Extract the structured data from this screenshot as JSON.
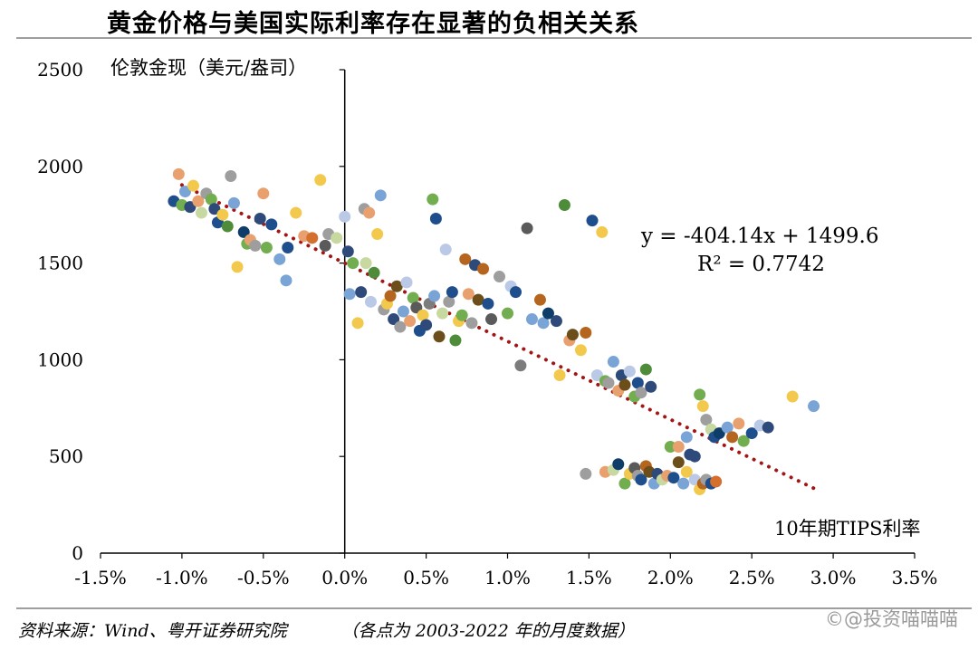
{
  "header": {
    "title": "黄金价格与美国实际利率存在显著的负相关关系"
  },
  "footer": {
    "source": "资料来源：Wind、粤开证券研究院",
    "note": "（各点为 2003-2022 年的月度数据）"
  },
  "watermark": {
    "text": "©@投资喵喵喵"
  },
  "chart_data": {
    "type": "scatter",
    "ylabel": "伦敦金现（美元/盎司）",
    "xlabel": "10年期TIPS利率",
    "xlim": [
      -1.5,
      3.5
    ],
    "ylim": [
      0,
      2500
    ],
    "xticks": [
      "-1.5%",
      "-1.0%",
      "-0.5%",
      "0.0%",
      "0.5%",
      "1.0%",
      "1.5%",
      "2.0%",
      "2.5%",
      "3.0%",
      "3.5%"
    ],
    "xtick_values": [
      -1.5,
      -1.0,
      -0.5,
      0.0,
      0.5,
      1.0,
      1.5,
      2.0,
      2.5,
      3.0,
      3.5
    ],
    "yticks": [
      "0",
      "500",
      "1000",
      "1500",
      "2000",
      "2500"
    ],
    "ytick_values": [
      0,
      500,
      1000,
      1500,
      2000,
      2500
    ],
    "grid": false,
    "y_axis_position": "x=0",
    "trendline": {
      "type": "linear",
      "slope": -404.14,
      "intercept": 1499.6,
      "x_range": [
        -1.0,
        2.9
      ],
      "style": "dotted",
      "color": "#a31515",
      "equation_label": "y = -404.14x + 1499.6",
      "r2_label": "R² = 0.7742"
    },
    "palette": [
      "#1f4e8c",
      "#e9a06f",
      "#9e9e9e",
      "#f2c94c",
      "#7aa4d6",
      "#72ad4f",
      "#2e4a7a",
      "#b5651d",
      "#5a5a5a",
      "#c7d9a0",
      "#b9c9e6",
      "#0f3d69",
      "#6b4e1a",
      "#7c7c7c",
      "#4e8c3a",
      "#d46f2e"
    ],
    "points": [
      [
        -1.05,
        1820,
        0
      ],
      [
        -1.02,
        1960,
        1
      ],
      [
        -1.0,
        1800,
        5
      ],
      [
        -0.98,
        1870,
        4
      ],
      [
        -0.95,
        1790,
        6
      ],
      [
        -0.93,
        1900,
        3
      ],
      [
        -0.9,
        1820,
        1
      ],
      [
        -0.88,
        1760,
        9
      ],
      [
        -0.85,
        1860,
        2
      ],
      [
        -0.82,
        1830,
        5
      ],
      [
        -0.8,
        1780,
        6
      ],
      [
        -0.78,
        1710,
        0
      ],
      [
        -0.75,
        1750,
        3
      ],
      [
        -0.72,
        1690,
        14
      ],
      [
        -0.7,
        1950,
        2
      ],
      [
        -0.68,
        1810,
        4
      ],
      [
        -0.66,
        1480,
        3
      ],
      [
        -0.62,
        1660,
        11
      ],
      [
        -0.6,
        1600,
        5
      ],
      [
        -0.58,
        1620,
        1
      ],
      [
        -0.55,
        1590,
        2
      ],
      [
        -0.52,
        1730,
        6
      ],
      [
        -0.5,
        1860,
        1
      ],
      [
        -0.48,
        1580,
        5
      ],
      [
        -0.45,
        1700,
        0
      ],
      [
        -0.4,
        1520,
        4
      ],
      [
        -0.36,
        1410,
        4
      ],
      [
        -0.35,
        1580,
        0
      ],
      [
        -0.3,
        1760,
        3
      ],
      [
        -0.25,
        1640,
        1
      ],
      [
        -0.2,
        1630,
        15
      ],
      [
        -0.15,
        1930,
        3
      ],
      [
        -0.12,
        1590,
        8
      ],
      [
        -0.1,
        1650,
        2
      ],
      [
        -0.05,
        1630,
        9
      ],
      [
        0.0,
        1740,
        10
      ],
      [
        0.02,
        1560,
        6
      ],
      [
        0.03,
        1340,
        4
      ],
      [
        0.05,
        1500,
        5
      ],
      [
        0.08,
        1190,
        3
      ],
      [
        0.1,
        1350,
        6
      ],
      [
        0.12,
        1780,
        2
      ],
      [
        0.13,
        1500,
        9
      ],
      [
        0.15,
        1760,
        1
      ],
      [
        0.16,
        1300,
        10
      ],
      [
        0.18,
        1450,
        14
      ],
      [
        0.2,
        1650,
        3
      ],
      [
        0.22,
        1850,
        4
      ],
      [
        0.24,
        1260,
        2
      ],
      [
        0.26,
        1290,
        3
      ],
      [
        0.28,
        1330,
        7
      ],
      [
        0.3,
        1210,
        6
      ],
      [
        0.32,
        1380,
        12
      ],
      [
        0.34,
        1170,
        2
      ],
      [
        0.36,
        1250,
        4
      ],
      [
        0.38,
        1400,
        10
      ],
      [
        0.4,
        1200,
        1
      ],
      [
        0.42,
        1320,
        5
      ],
      [
        0.44,
        1270,
        8
      ],
      [
        0.46,
        1150,
        0
      ],
      [
        0.48,
        1230,
        3
      ],
      [
        0.5,
        1180,
        6
      ],
      [
        0.52,
        1290,
        13
      ],
      [
        0.54,
        1830,
        5
      ],
      [
        0.55,
        1330,
        4
      ],
      [
        0.56,
        1730,
        0
      ],
      [
        0.58,
        1120,
        12
      ],
      [
        0.6,
        1240,
        9
      ],
      [
        0.62,
        1570,
        10
      ],
      [
        0.64,
        1300,
        2
      ],
      [
        0.66,
        1350,
        0
      ],
      [
        0.68,
        1100,
        14
      ],
      [
        0.7,
        1200,
        3
      ],
      [
        0.72,
        1230,
        5
      ],
      [
        0.74,
        1520,
        7
      ],
      [
        0.76,
        1340,
        1
      ],
      [
        0.78,
        1190,
        2
      ],
      [
        0.8,
        1490,
        6
      ],
      [
        0.82,
        1310,
        12
      ],
      [
        0.85,
        1470,
        7
      ],
      [
        0.88,
        1290,
        0
      ],
      [
        0.9,
        1210,
        8
      ],
      [
        0.95,
        1430,
        2
      ],
      [
        1.0,
        1240,
        5
      ],
      [
        1.02,
        1380,
        10
      ],
      [
        1.05,
        1350,
        0
      ],
      [
        1.08,
        970,
        13
      ],
      [
        1.12,
        1680,
        8
      ],
      [
        1.15,
        1210,
        4
      ],
      [
        1.2,
        1310,
        7
      ],
      [
        1.22,
        1190,
        4
      ],
      [
        1.25,
        1240,
        11
      ],
      [
        1.3,
        1200,
        6
      ],
      [
        1.32,
        920,
        3
      ],
      [
        1.35,
        1800,
        14
      ],
      [
        1.38,
        1100,
        1
      ],
      [
        1.4,
        1130,
        12
      ],
      [
        1.45,
        1050,
        3
      ],
      [
        1.48,
        1140,
        7
      ],
      [
        1.52,
        1720,
        0
      ],
      [
        1.55,
        920,
        10
      ],
      [
        1.58,
        1660,
        3
      ],
      [
        1.6,
        890,
        5
      ],
      [
        1.62,
        880,
        2
      ],
      [
        1.65,
        990,
        4
      ],
      [
        1.68,
        840,
        1
      ],
      [
        1.7,
        920,
        6
      ],
      [
        1.72,
        870,
        12
      ],
      [
        1.75,
        940,
        10
      ],
      [
        1.78,
        810,
        5
      ],
      [
        1.8,
        880,
        0
      ],
      [
        1.82,
        830,
        2
      ],
      [
        1.85,
        950,
        14
      ],
      [
        1.88,
        860,
        6
      ],
      [
        1.48,
        410,
        2
      ],
      [
        1.6,
        420,
        1
      ],
      [
        1.65,
        430,
        9
      ],
      [
        1.68,
        460,
        11
      ],
      [
        1.72,
        360,
        5
      ],
      [
        1.75,
        410,
        3
      ],
      [
        1.78,
        440,
        8
      ],
      [
        1.8,
        400,
        2
      ],
      [
        1.82,
        380,
        0
      ],
      [
        1.85,
        450,
        7
      ],
      [
        1.87,
        420,
        12
      ],
      [
        1.9,
        360,
        4
      ],
      [
        1.92,
        410,
        6
      ],
      [
        1.95,
        380,
        9
      ],
      [
        1.98,
        400,
        1
      ],
      [
        2.0,
        550,
        5
      ],
      [
        2.02,
        390,
        0
      ],
      [
        2.05,
        470,
        12
      ],
      [
        2.08,
        360,
        4
      ],
      [
        2.1,
        420,
        3
      ],
      [
        2.12,
        510,
        6
      ],
      [
        2.15,
        380,
        10
      ],
      [
        2.18,
        330,
        3
      ],
      [
        2.2,
        360,
        7
      ],
      [
        2.22,
        380,
        2
      ],
      [
        2.25,
        360,
        0
      ],
      [
        2.28,
        370,
        15
      ],
      [
        2.05,
        550,
        1
      ],
      [
        2.1,
        600,
        4
      ],
      [
        2.15,
        500,
        6
      ],
      [
        2.18,
        820,
        5
      ],
      [
        2.2,
        760,
        3
      ],
      [
        2.22,
        690,
        2
      ],
      [
        2.25,
        640,
        9
      ],
      [
        2.27,
        600,
        0
      ],
      [
        2.3,
        620,
        11
      ],
      [
        2.35,
        650,
        4
      ],
      [
        2.38,
        600,
        7
      ],
      [
        2.42,
        670,
        1
      ],
      [
        2.45,
        580,
        5
      ],
      [
        2.5,
        620,
        0
      ],
      [
        2.55,
        660,
        10
      ],
      [
        2.6,
        650,
        6
      ],
      [
        2.75,
        810,
        3
      ],
      [
        2.88,
        760,
        4
      ]
    ]
  }
}
